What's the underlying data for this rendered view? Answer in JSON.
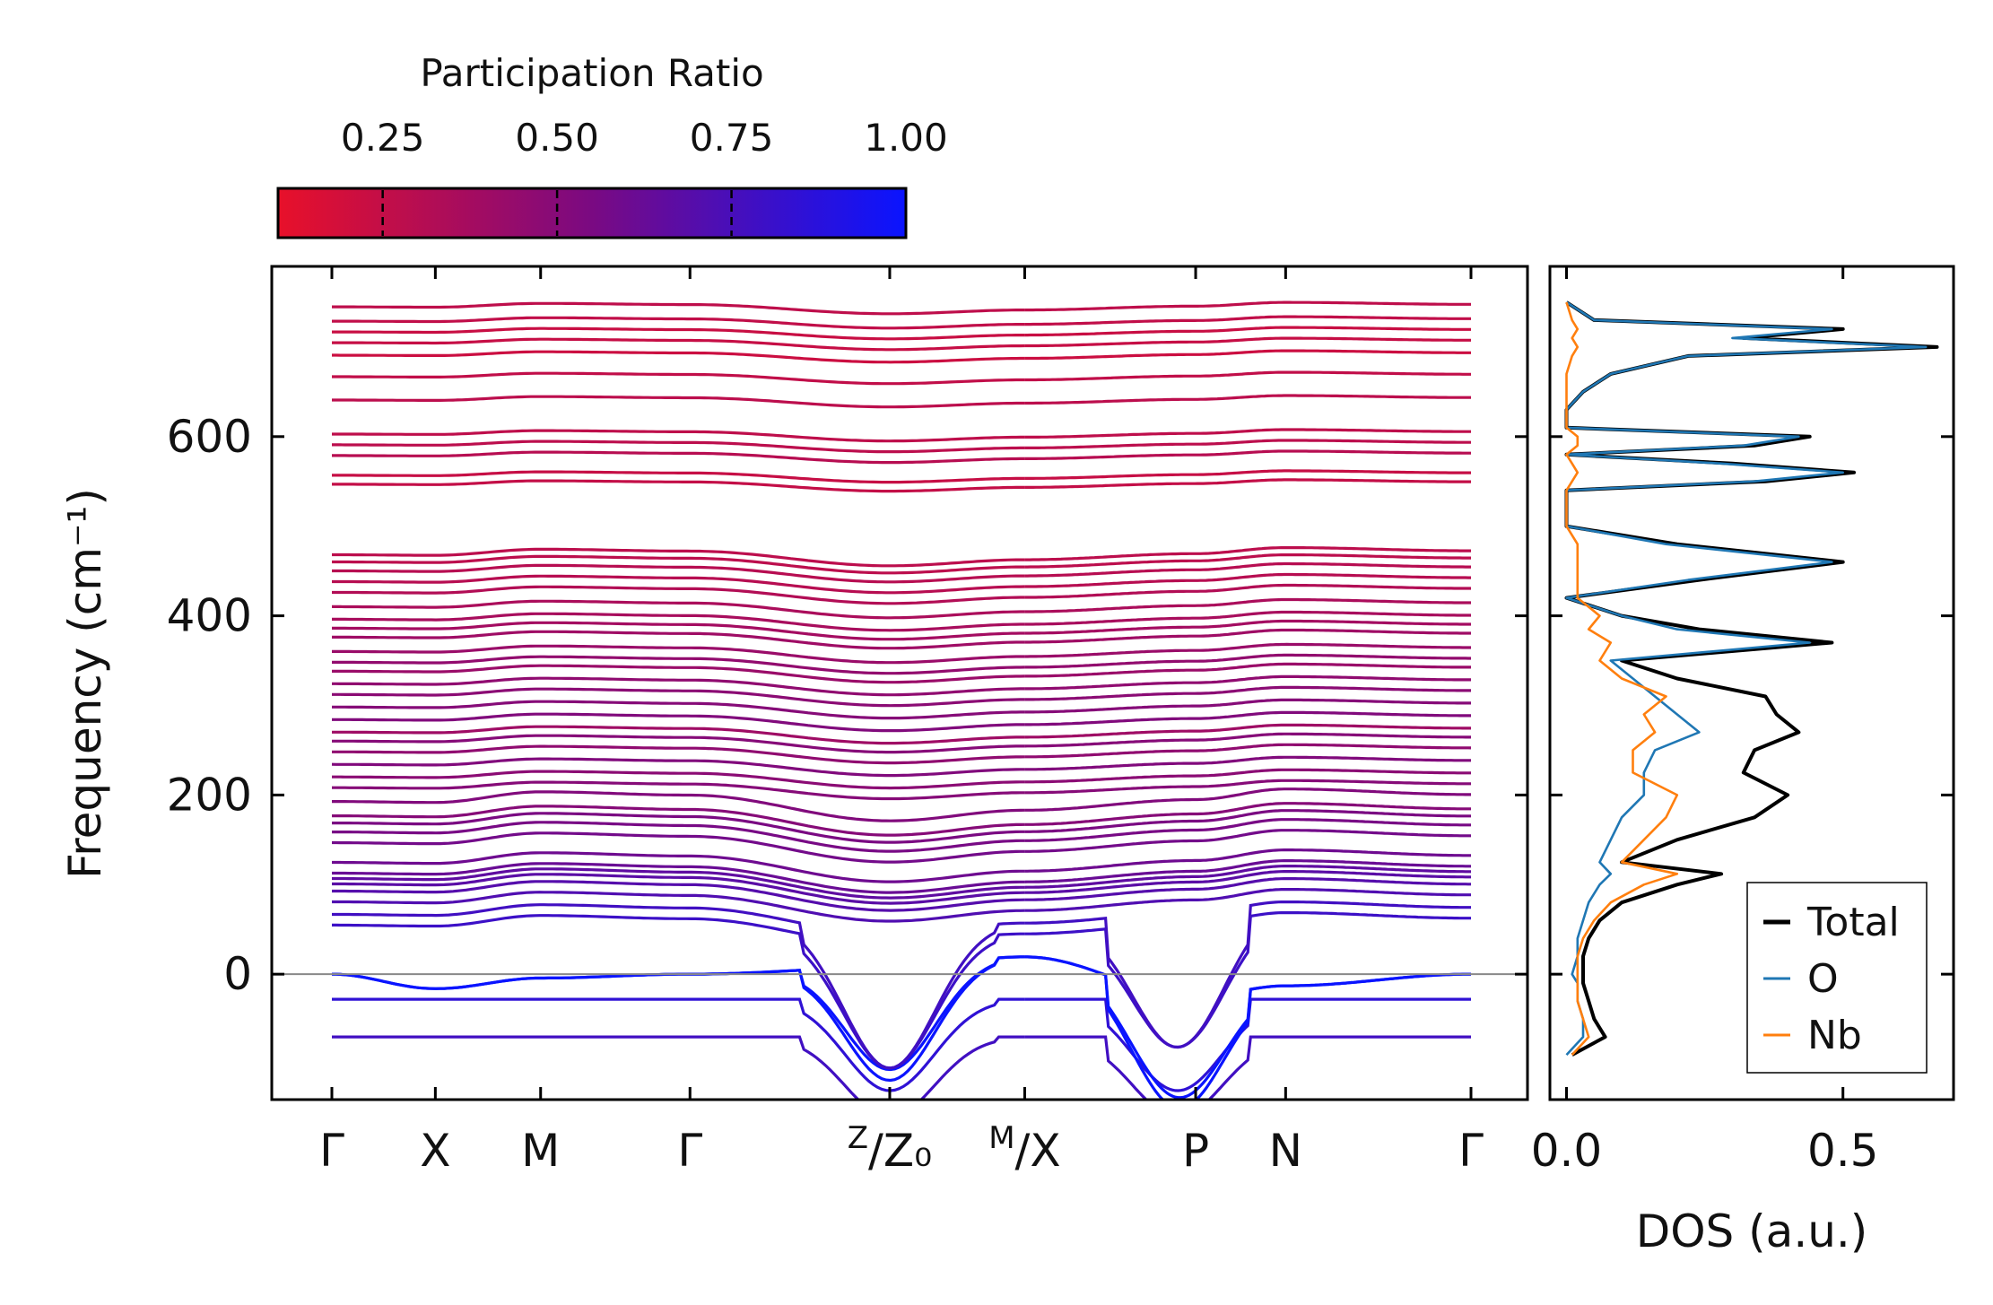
{
  "chart_data": [
    {
      "type": "line",
      "kind": "phonon-band-structure",
      "ylabel": "Frequency (cm⁻¹)",
      "ylim": [
        -140,
        790
      ],
      "yticks": [
        0,
        200,
        400,
        600
      ],
      "ytick_labels": [
        "0",
        "200",
        "400",
        "600"
      ],
      "kpath_positions": [
        0,
        0.575,
        1.16,
        1.99,
        3.1,
        3.85,
        4.8,
        5.3,
        6.33
      ],
      "kpath_labels": [
        {
          "main": "Γ",
          "sup": "",
          "sub": ""
        },
        {
          "main": "X",
          "sup": "",
          "sub": ""
        },
        {
          "main": "M",
          "sup": "",
          "sub": ""
        },
        {
          "main": "Γ",
          "sup": "",
          "sub": ""
        },
        {
          "main": "/Z₀",
          "sup": "Z",
          "sub": ""
        },
        {
          "main": "/X",
          "sup": "M",
          "sub": ""
        },
        {
          "main": "P",
          "sup": "",
          "sub": ""
        },
        {
          "main": "N",
          "sup": "",
          "sub": ""
        },
        {
          "main": "Γ",
          "sup": "",
          "sub": ""
        }
      ],
      "path_break_at": 3.85,
      "zero_line": true,
      "colorbar": {
        "label": "Participation Ratio",
        "range": [
          0.1,
          1.0
        ],
        "ticks": [
          0.25,
          0.5,
          0.75,
          1.0
        ],
        "tick_labels": [
          "0.25",
          "0.50",
          "0.75",
          "1.00"
        ],
        "color_low": "#e8102a",
        "color_mid": "#7a0a82",
        "color_high": "#0a14ff"
      },
      "band_frequencies_gamma_cm1": [
        -70,
        -28,
        0,
        0,
        58,
        70,
        84,
        96,
        104,
        110,
        116,
        128,
        150,
        162,
        172,
        180,
        196,
        210,
        222,
        236,
        250,
        262,
        272,
        286,
        300,
        314,
        326,
        340,
        350,
        362,
        378,
        388,
        398,
        412,
        428,
        440,
        452,
        462,
        470,
        548,
        558,
        580,
        592,
        604,
        642,
        668,
        692,
        706,
        718,
        730,
        746
      ],
      "band_participation_ratio_estimate": [
        0.78,
        0.85,
        1.0,
        1.0,
        0.8,
        0.78,
        0.72,
        0.7,
        0.68,
        0.66,
        0.62,
        0.6,
        0.58,
        0.56,
        0.55,
        0.5,
        0.52,
        0.5,
        0.48,
        0.52,
        0.46,
        0.5,
        0.4,
        0.52,
        0.5,
        0.48,
        0.46,
        0.42,
        0.45,
        0.42,
        0.4,
        0.38,
        0.36,
        0.35,
        0.32,
        0.3,
        0.3,
        0.28,
        0.28,
        0.25,
        0.24,
        0.3,
        0.28,
        0.27,
        0.28,
        0.26,
        0.22,
        0.24,
        0.23,
        0.26,
        0.27
      ]
    },
    {
      "type": "line",
      "kind": "phonon-dos",
      "xlabel": "DOS (a.u.)",
      "xlim": [
        -0.03,
        0.7
      ],
      "ylim": [
        -140,
        790
      ],
      "xticks": [
        0.0,
        0.5
      ],
      "xtick_labels": [
        "0.0",
        "0.5"
      ],
      "legend": {
        "position": "bottom-right",
        "entries": [
          "Total",
          "O",
          "Nb"
        ]
      },
      "series": [
        {
          "name": "Total",
          "color": "#000000",
          "frequencies": [
            -90,
            -70,
            -50,
            -30,
            -10,
            0,
            20,
            40,
            60,
            80,
            100,
            112,
            125,
            150,
            175,
            200,
            225,
            250,
            270,
            290,
            310,
            330,
            350,
            370,
            385,
            400,
            420,
            440,
            460,
            480,
            500,
            540,
            550,
            560,
            570,
            580,
            590,
            600,
            610,
            630,
            650,
            670,
            690,
            700,
            710,
            720,
            730,
            750
          ],
          "values": [
            0.01,
            0.07,
            0.05,
            0.04,
            0.03,
            0.03,
            0.03,
            0.04,
            0.06,
            0.1,
            0.2,
            0.28,
            0.1,
            0.2,
            0.34,
            0.4,
            0.32,
            0.34,
            0.42,
            0.38,
            0.36,
            0.2,
            0.1,
            0.48,
            0.24,
            0.1,
            0.0,
            0.24,
            0.5,
            0.2,
            0.0,
            0.0,
            0.36,
            0.52,
            0.3,
            0.0,
            0.34,
            0.44,
            0.0,
            0.0,
            0.03,
            0.08,
            0.22,
            0.67,
            0.32,
            0.5,
            0.05,
            0.0
          ]
        },
        {
          "name": "O",
          "color": "#1f77b4",
          "frequencies": [
            -90,
            -70,
            -50,
            -30,
            -10,
            0,
            20,
            40,
            60,
            80,
            100,
            112,
            125,
            150,
            175,
            200,
            225,
            250,
            270,
            290,
            310,
            330,
            350,
            370,
            385,
            400,
            420,
            440,
            460,
            480,
            500,
            540,
            550,
            560,
            570,
            580,
            590,
            600,
            610,
            630,
            650,
            670,
            690,
            700,
            710,
            720,
            730,
            750
          ],
          "values": [
            0.0,
            0.03,
            0.03,
            0.02,
            0.02,
            0.01,
            0.02,
            0.02,
            0.03,
            0.04,
            0.06,
            0.08,
            0.06,
            0.08,
            0.1,
            0.14,
            0.14,
            0.16,
            0.24,
            0.2,
            0.16,
            0.12,
            0.08,
            0.44,
            0.2,
            0.1,
            0.0,
            0.22,
            0.48,
            0.18,
            0.0,
            0.0,
            0.34,
            0.5,
            0.28,
            0.0,
            0.32,
            0.42,
            0.0,
            0.0,
            0.03,
            0.08,
            0.22,
            0.65,
            0.3,
            0.48,
            0.05,
            0.0
          ]
        },
        {
          "name": "Nb",
          "color": "#ff7f0e",
          "frequencies": [
            -90,
            -70,
            -50,
            -30,
            -10,
            0,
            20,
            40,
            60,
            80,
            100,
            112,
            125,
            150,
            175,
            200,
            225,
            250,
            270,
            290,
            310,
            330,
            350,
            370,
            385,
            400,
            420,
            440,
            460,
            480,
            500,
            540,
            550,
            560,
            570,
            580,
            590,
            600,
            610,
            630,
            650,
            670,
            690,
            700,
            710,
            720,
            730,
            750
          ],
          "values": [
            0.01,
            0.04,
            0.03,
            0.02,
            0.02,
            0.02,
            0.02,
            0.03,
            0.05,
            0.08,
            0.14,
            0.2,
            0.1,
            0.14,
            0.18,
            0.2,
            0.12,
            0.12,
            0.16,
            0.14,
            0.18,
            0.1,
            0.06,
            0.08,
            0.04,
            0.06,
            0.02,
            0.02,
            0.02,
            0.02,
            0.0,
            0.0,
            0.01,
            0.02,
            0.01,
            0.0,
            0.02,
            0.02,
            0.0,
            0.0,
            0.0,
            0.0,
            0.01,
            0.02,
            0.01,
            0.02,
            0.01,
            0.0
          ]
        }
      ]
    }
  ]
}
